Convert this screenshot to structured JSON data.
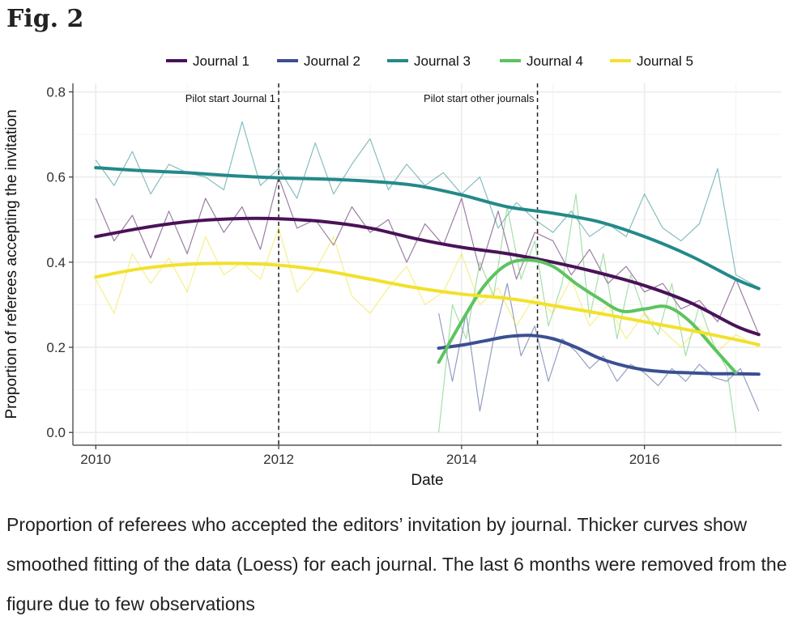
{
  "figure_label": "Fig. 2",
  "caption": "Proportion of referees who accepted the editors’ invitation by journal. Thicker curves show smoothed fitting of the data (Loess) for each journal. The last 6 months were removed from the figure due to few observations",
  "colors": {
    "Journal 1": "#4a1258",
    "Journal 2": "#3b4f92",
    "Journal 3": "#24898b",
    "Journal 4": "#5cc461",
    "Journal 5": "#f2e12c",
    "grid": "#ececec",
    "vline": "#222222"
  },
  "chart_data": {
    "type": "line",
    "xlabel": "Date",
    "ylabel": "Proportion of referees accepting the invitation",
    "xlim": [
      2010.0,
      2017.3
    ],
    "ylim": [
      0.0,
      0.8
    ],
    "x_ticks": [
      "2010",
      "2012",
      "2014",
      "2016"
    ],
    "y_ticks": [
      "0.0",
      "0.2",
      "0.4",
      "0.6",
      "0.8"
    ],
    "grid": true,
    "legend_position": "top",
    "annotations": [
      {
        "label": "Pilot start Journal 1",
        "x": 2012.0
      },
      {
        "label": "Pilot start other journals",
        "x": 2014.83
      }
    ],
    "series": [
      {
        "name": "Journal 1",
        "smooth": {
          "x": [
            2010.0,
            2010.5,
            2011.0,
            2011.5,
            2012.0,
            2012.5,
            2013.0,
            2013.5,
            2014.0,
            2014.5,
            2015.0,
            2015.5,
            2016.0,
            2016.5,
            2017.0,
            2017.25
          ],
          "y": [
            0.46,
            0.48,
            0.495,
            0.502,
            0.502,
            0.495,
            0.48,
            0.455,
            0.435,
            0.42,
            0.4,
            0.375,
            0.345,
            0.305,
            0.25,
            0.23
          ]
        },
        "raw": {
          "x": [
            2010.0,
            2010.2,
            2010.4,
            2010.6,
            2010.8,
            2011.0,
            2011.2,
            2011.4,
            2011.6,
            2011.8,
            2012.0,
            2012.2,
            2012.4,
            2012.6,
            2012.8,
            2013.0,
            2013.2,
            2013.4,
            2013.6,
            2013.8,
            2014.0,
            2014.2,
            2014.4,
            2014.6,
            2014.8,
            2015.0,
            2015.2,
            2015.4,
            2015.6,
            2015.8,
            2016.0,
            2016.2,
            2016.4,
            2016.6,
            2016.8,
            2017.0,
            2017.25
          ],
          "y": [
            0.55,
            0.45,
            0.51,
            0.41,
            0.52,
            0.42,
            0.55,
            0.47,
            0.53,
            0.43,
            0.6,
            0.48,
            0.5,
            0.44,
            0.53,
            0.47,
            0.5,
            0.4,
            0.49,
            0.44,
            0.55,
            0.38,
            0.52,
            0.36,
            0.47,
            0.45,
            0.37,
            0.43,
            0.35,
            0.39,
            0.33,
            0.35,
            0.29,
            0.31,
            0.26,
            0.36,
            0.23
          ]
        }
      },
      {
        "name": "Journal 2",
        "smooth": {
          "x": [
            2013.75,
            2014.0,
            2014.25,
            2014.5,
            2014.75,
            2015.0,
            2015.25,
            2015.5,
            2015.75,
            2016.0,
            2016.25,
            2016.5,
            2016.75,
            2017.0,
            2017.25
          ],
          "y": [
            0.198,
            0.205,
            0.215,
            0.225,
            0.228,
            0.22,
            0.2,
            0.175,
            0.158,
            0.147,
            0.142,
            0.14,
            0.138,
            0.138,
            0.137
          ]
        },
        "raw": {
          "x": [
            2013.75,
            2013.9,
            2014.05,
            2014.2,
            2014.35,
            2014.5,
            2014.65,
            2014.8,
            2014.95,
            2015.1,
            2015.25,
            2015.4,
            2015.55,
            2015.7,
            2015.85,
            2016.0,
            2016.15,
            2016.3,
            2016.45,
            2016.6,
            2016.75,
            2016.9,
            2017.05,
            2017.25
          ],
          "y": [
            0.28,
            0.12,
            0.28,
            0.05,
            0.22,
            0.35,
            0.18,
            0.25,
            0.12,
            0.22,
            0.19,
            0.15,
            0.18,
            0.12,
            0.16,
            0.14,
            0.11,
            0.15,
            0.12,
            0.16,
            0.13,
            0.12,
            0.15,
            0.05
          ]
        }
      },
      {
        "name": "Journal 3",
        "smooth": {
          "x": [
            2010.0,
            2010.5,
            2011.0,
            2011.5,
            2012.0,
            2012.5,
            2013.0,
            2013.5,
            2014.0,
            2014.5,
            2015.0,
            2015.5,
            2016.0,
            2016.5,
            2017.0,
            2017.25
          ],
          "y": [
            0.622,
            0.615,
            0.61,
            0.603,
            0.598,
            0.595,
            0.59,
            0.58,
            0.558,
            0.53,
            0.515,
            0.495,
            0.46,
            0.415,
            0.36,
            0.338
          ]
        },
        "raw": {
          "x": [
            2010.0,
            2010.2,
            2010.4,
            2010.6,
            2010.8,
            2011.0,
            2011.2,
            2011.4,
            2011.6,
            2011.8,
            2012.0,
            2012.2,
            2012.4,
            2012.6,
            2012.8,
            2013.0,
            2013.2,
            2013.4,
            2013.6,
            2013.8,
            2014.0,
            2014.2,
            2014.4,
            2014.6,
            2014.8,
            2015.0,
            2015.2,
            2015.4,
            2015.6,
            2015.8,
            2016.0,
            2016.2,
            2016.4,
            2016.6,
            2016.8,
            2017.0,
            2017.25
          ],
          "y": [
            0.64,
            0.58,
            0.66,
            0.56,
            0.63,
            0.61,
            0.6,
            0.57,
            0.73,
            0.58,
            0.62,
            0.55,
            0.68,
            0.56,
            0.63,
            0.69,
            0.57,
            0.63,
            0.58,
            0.61,
            0.56,
            0.6,
            0.48,
            0.54,
            0.5,
            0.47,
            0.52,
            0.46,
            0.49,
            0.46,
            0.56,
            0.48,
            0.45,
            0.49,
            0.62,
            0.37,
            0.34
          ]
        }
      },
      {
        "name": "Journal 4",
        "smooth": {
          "x": [
            2013.75,
            2014.0,
            2014.25,
            2014.5,
            2014.75,
            2015.0,
            2015.25,
            2015.5,
            2015.75,
            2016.0,
            2016.25,
            2016.5,
            2016.75,
            2017.0
          ],
          "y": [
            0.165,
            0.26,
            0.345,
            0.395,
            0.405,
            0.39,
            0.35,
            0.315,
            0.285,
            0.29,
            0.295,
            0.26,
            0.2,
            0.14
          ]
        },
        "raw": {
          "x": [
            2013.75,
            2013.9,
            2014.05,
            2014.2,
            2014.35,
            2014.5,
            2014.65,
            2014.8,
            2014.95,
            2015.1,
            2015.25,
            2015.4,
            2015.55,
            2015.7,
            2015.85,
            2016.0,
            2016.15,
            2016.3,
            2016.45,
            2016.6,
            2016.75,
            2016.9,
            2017.0
          ],
          "y": [
            0.0,
            0.3,
            0.22,
            0.4,
            0.32,
            0.53,
            0.36,
            0.45,
            0.25,
            0.35,
            0.56,
            0.27,
            0.42,
            0.22,
            0.37,
            0.28,
            0.23,
            0.35,
            0.18,
            0.3,
            0.21,
            0.15,
            0.0
          ]
        }
      },
      {
        "name": "Journal 5",
        "smooth": {
          "x": [
            2010.0,
            2010.5,
            2011.0,
            2011.5,
            2012.0,
            2012.5,
            2013.0,
            2013.5,
            2014.0,
            2014.5,
            2015.0,
            2015.5,
            2016.0,
            2016.5,
            2017.0,
            2017.25
          ],
          "y": [
            0.365,
            0.385,
            0.395,
            0.397,
            0.393,
            0.38,
            0.36,
            0.34,
            0.325,
            0.315,
            0.298,
            0.28,
            0.26,
            0.24,
            0.218,
            0.206
          ]
        },
        "raw": {
          "x": [
            2010.0,
            2010.2,
            2010.4,
            2010.6,
            2010.8,
            2011.0,
            2011.2,
            2011.4,
            2011.6,
            2011.8,
            2012.0,
            2012.2,
            2012.4,
            2012.6,
            2012.8,
            2013.0,
            2013.2,
            2013.4,
            2013.6,
            2013.8,
            2014.0,
            2014.2,
            2014.4,
            2014.6,
            2014.8,
            2015.0,
            2015.2,
            2015.4,
            2015.6,
            2015.8,
            2016.0,
            2016.2,
            2016.4,
            2016.6,
            2016.8,
            2017.0,
            2017.25
          ],
          "y": [
            0.36,
            0.28,
            0.42,
            0.35,
            0.41,
            0.33,
            0.46,
            0.37,
            0.4,
            0.36,
            0.48,
            0.33,
            0.38,
            0.46,
            0.32,
            0.28,
            0.34,
            0.39,
            0.3,
            0.33,
            0.42,
            0.3,
            0.34,
            0.25,
            0.32,
            0.28,
            0.36,
            0.25,
            0.3,
            0.22,
            0.28,
            0.24,
            0.2,
            0.25,
            0.19,
            0.23,
            0.2
          ]
        }
      }
    ]
  }
}
